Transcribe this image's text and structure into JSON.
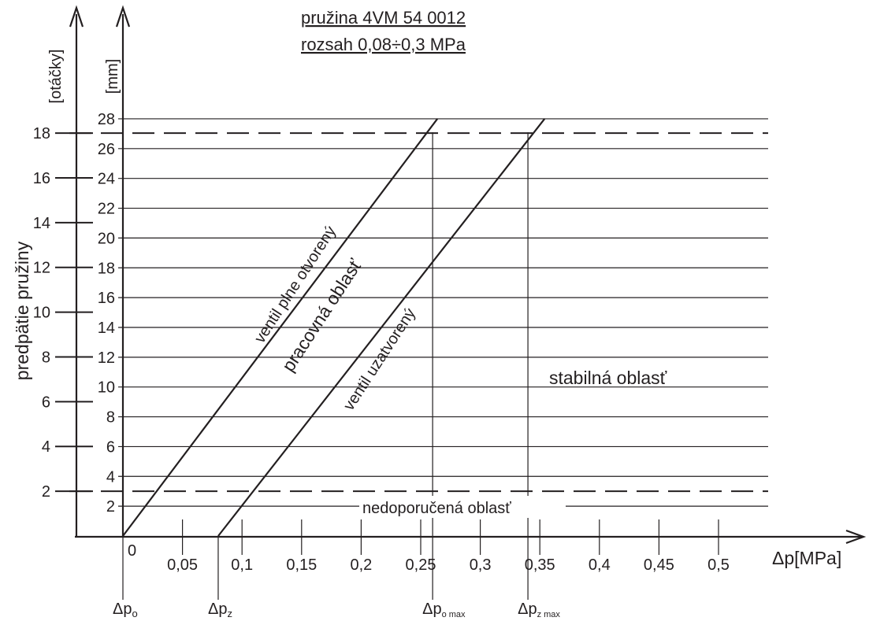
{
  "chart_data": {
    "type": "line",
    "title": "pružina 4VM 54 0012",
    "subtitle": "rozsah 0,08÷0,3 MPa",
    "xlabel": "Δp[MPa]",
    "ylabel": "predpätie pružiny",
    "y_outer_unit": "[otáčky]",
    "y_inner_unit": "[mm]",
    "x_tick_labels": [
      "0",
      "0,05",
      "0,1",
      "0,15",
      "0,2",
      "0,25",
      "0,3",
      "0,35",
      "0,4",
      "0,45",
      "0,5"
    ],
    "x_ticks": [
      0,
      0.05,
      0.1,
      0.15,
      0.2,
      0.25,
      0.3,
      0.35,
      0.4,
      0.45,
      0.5
    ],
    "xlim": [
      0,
      0.6
    ],
    "y_outer_ticks": [
      2,
      4,
      6,
      8,
      10,
      12,
      14,
      16,
      18
    ],
    "y_inner_ticks": [
      2,
      4,
      6,
      8,
      10,
      12,
      14,
      16,
      18,
      20,
      22,
      24,
      26,
      28
    ],
    "ylim_mm": [
      0,
      28
    ],
    "ylim_turns": [
      0,
      18
    ],
    "grid": true,
    "series": [
      {
        "name": "ventil plne otvorený",
        "x": [
          0,
          0.264
        ],
        "y_mm": [
          0,
          28
        ]
      },
      {
        "name": "ventil uzatvorený",
        "x": [
          0.08,
          0.354
        ],
        "y_mm": [
          0,
          28
        ]
      }
    ],
    "dashed_limits_turns": [
      2,
      18
    ],
    "markers": [
      {
        "x": 0,
        "label": "Δp",
        "sub": "o"
      },
      {
        "x": 0.08,
        "label": "Δp",
        "sub": "z"
      },
      {
        "x": 0.26,
        "label": "Δp",
        "sub": "o max"
      },
      {
        "x": 0.34,
        "label": "Δp",
        "sub": "z max"
      }
    ],
    "annotations": {
      "working_region": "pracovná oblasť",
      "stable_region": "stabilná oblasť",
      "not_recommended": "nedoporučená oblasť"
    }
  }
}
